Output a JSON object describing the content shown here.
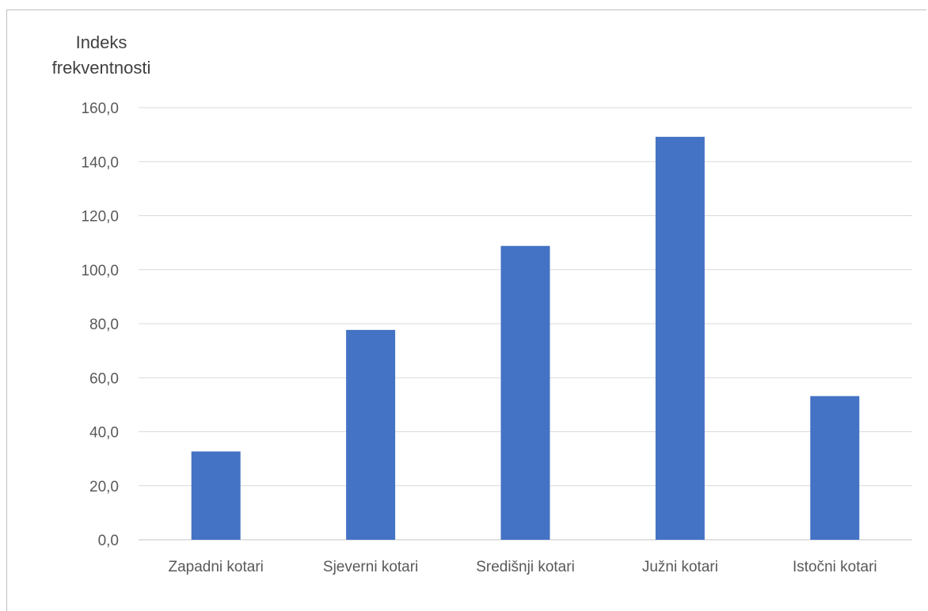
{
  "chart_data": {
    "type": "bar",
    "title": "",
    "ylabel_lines": [
      "Indeks",
      "frekventnosti"
    ],
    "xlabel": "",
    "categories": [
      "Zapadni kotari",
      "Sjeverni kotari",
      "Središnji kotari",
      "Južni kotari",
      "Istočni kotari"
    ],
    "values": [
      32.7,
      77.7,
      108.8,
      149.2,
      53.2
    ],
    "ylim": [
      0,
      160
    ],
    "yticks": [
      0,
      20,
      40,
      60,
      80,
      100,
      120,
      140,
      160
    ],
    "ytick_labels": [
      "0,0",
      "20,0",
      "40,0",
      "60,0",
      "80,0",
      "100,0",
      "120,0",
      "140,0",
      "160,0"
    ],
    "grid": true,
    "bar_color": "#4472c4",
    "gridline_color": "#d9d9d9",
    "text_color": "#595959"
  }
}
